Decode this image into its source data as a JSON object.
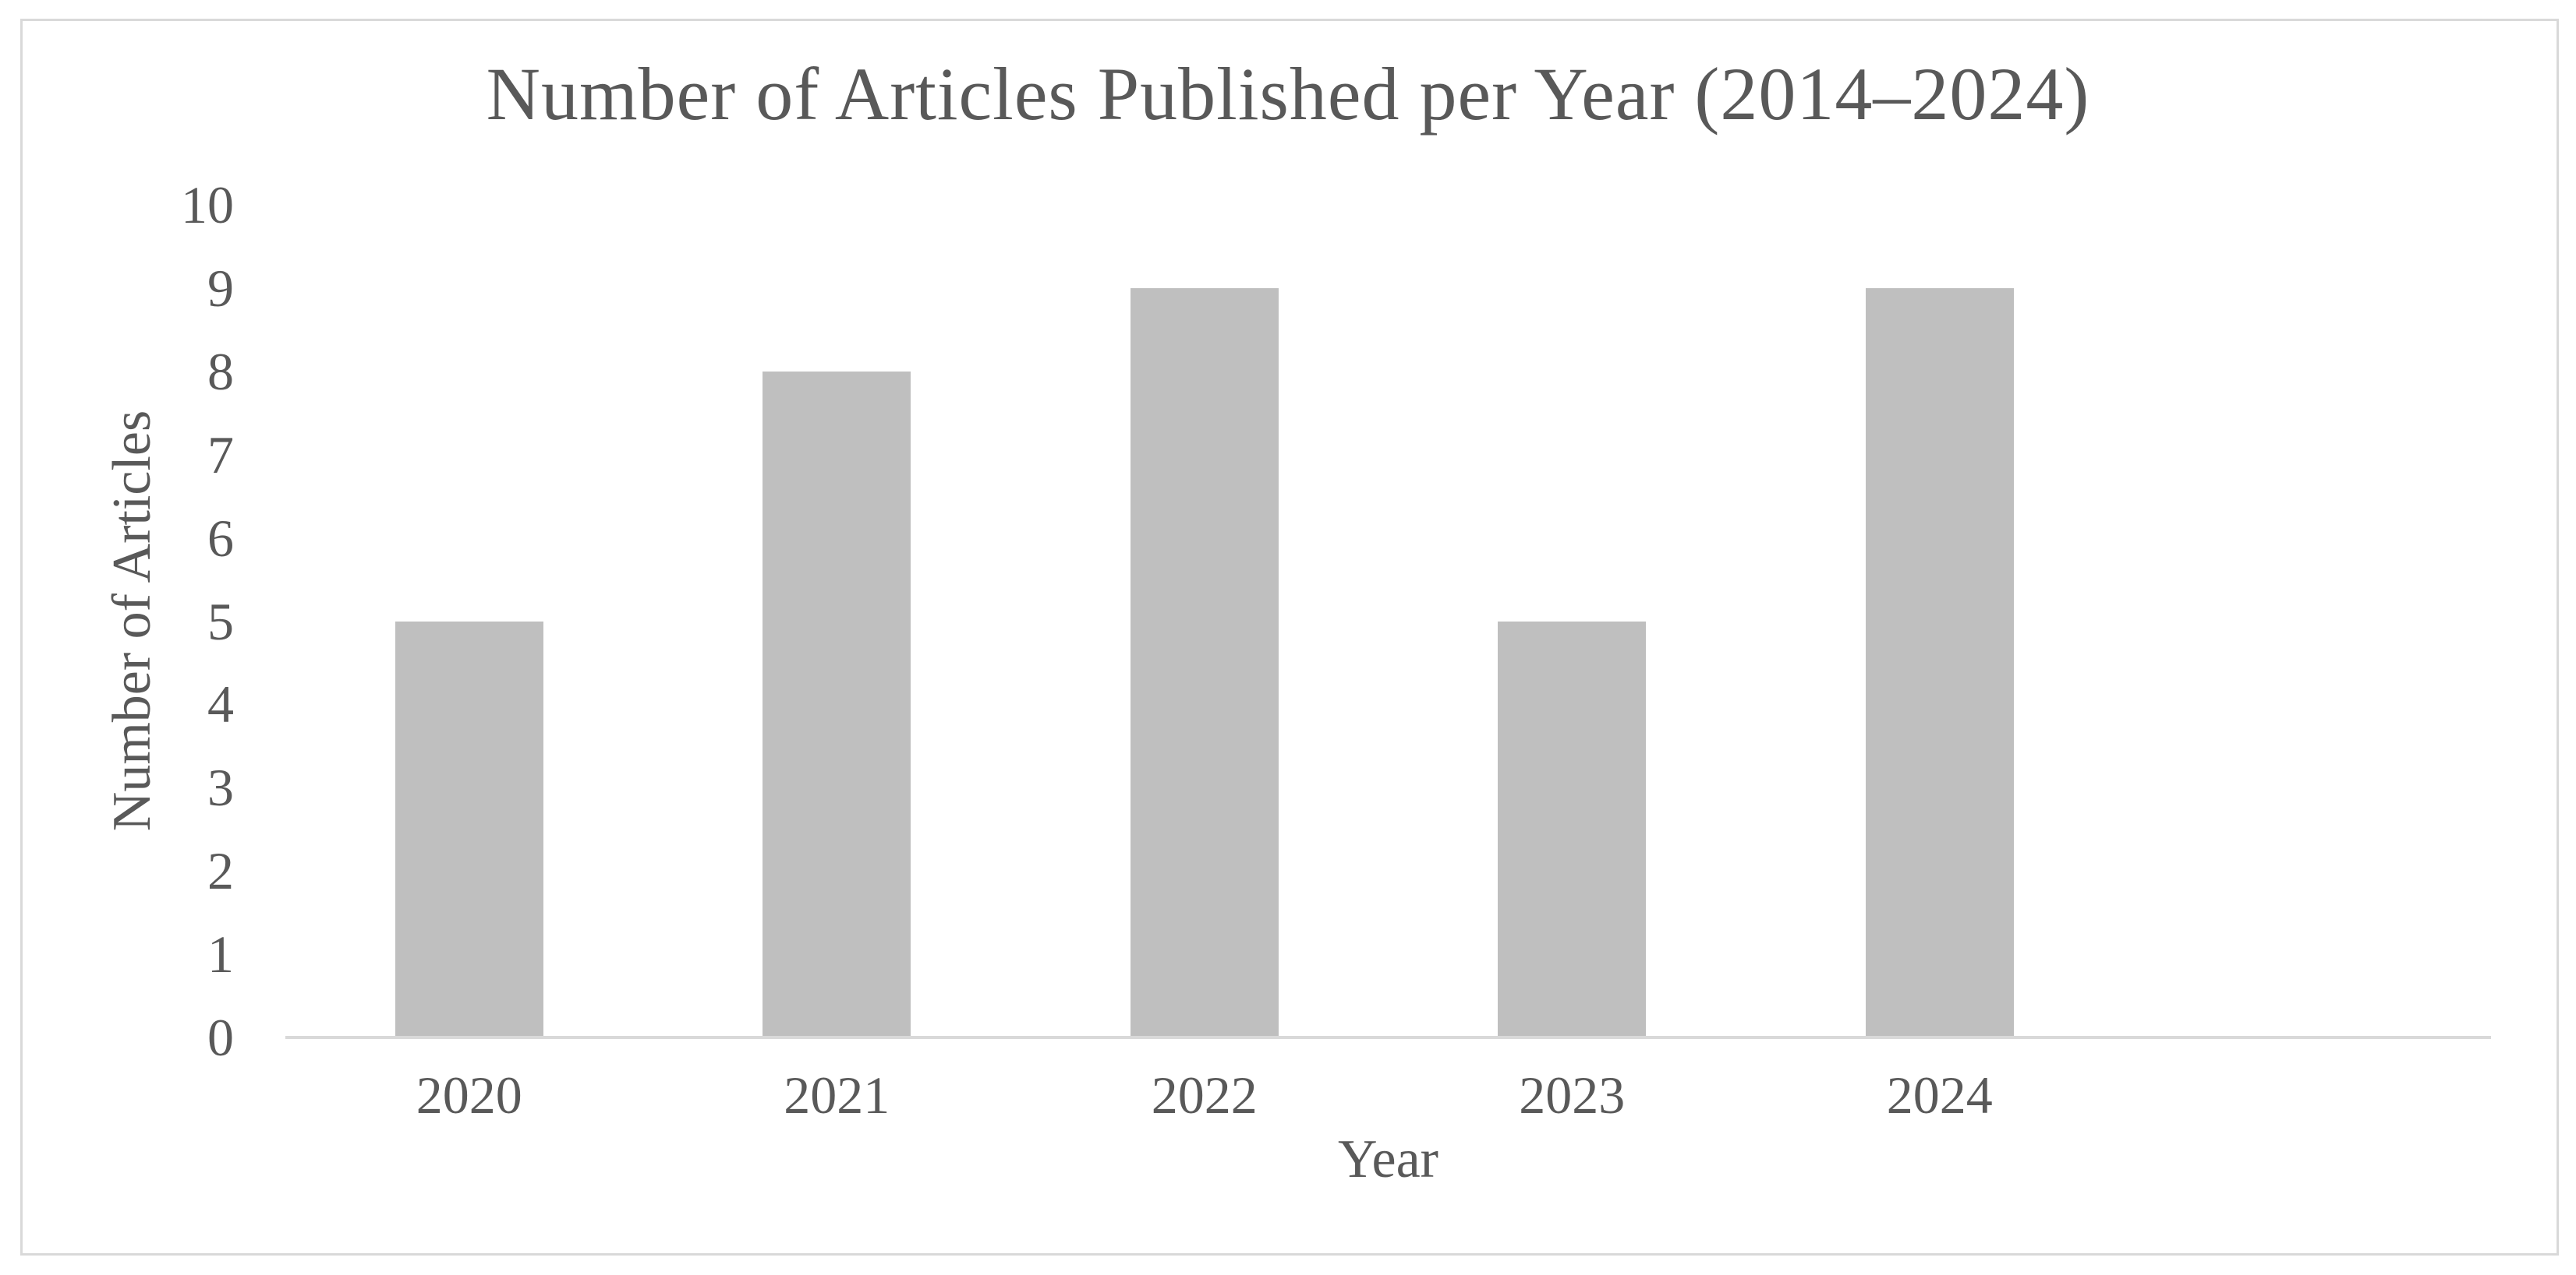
{
  "figure": {
    "background": "#ffffff",
    "border_color": "#d9d9d9"
  },
  "chart_data": {
    "type": "bar",
    "title": "Number of Articles Published per Year (2014–2024)",
    "xlabel": "Year",
    "ylabel": "Number of Articles",
    "categories": [
      "2020",
      "2021",
      "2022",
      "2023",
      "2024"
    ],
    "values": [
      5,
      8,
      9,
      5,
      9
    ],
    "ylim": [
      0,
      10
    ],
    "ytick_step": 1,
    "ytick_labels": [
      "0",
      "1",
      "2",
      "3",
      "4",
      "5",
      "6",
      "7",
      "8",
      "9",
      "10"
    ],
    "grid": false,
    "legend": false,
    "x_slot_count": 6,
    "bar_color": "#bfbfbf",
    "text_color": "#595959",
    "axis_line_color": "#d9d9d9"
  }
}
